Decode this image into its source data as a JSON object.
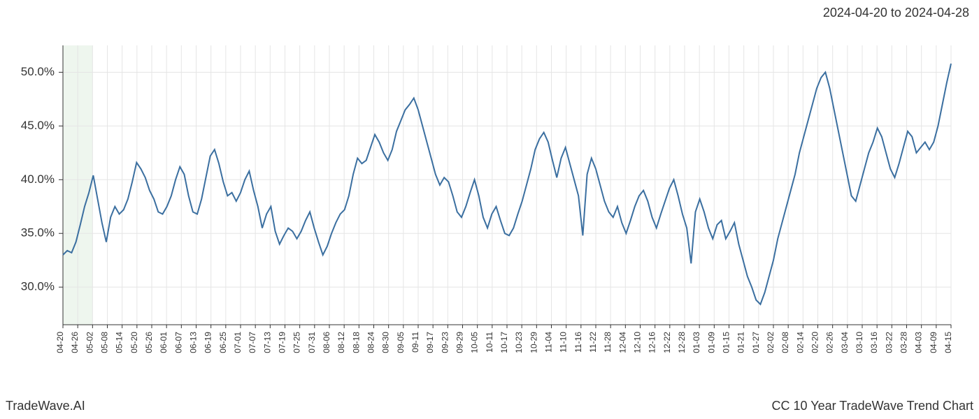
{
  "header": {
    "date_range": "2024-04-20 to 2024-04-28"
  },
  "footer": {
    "brand": "TradeWave.AI",
    "chart_title": "CC 10 Year TradeWave Trend Chart"
  },
  "chart": {
    "type": "line",
    "line_color": "#3b6fa0",
    "line_width": 2,
    "background_color": "#ffffff",
    "grid_color": "#e5e5e5",
    "axis_color": "#333333",
    "highlight_band": {
      "color": "#d4e8d4",
      "x_start_index": 0,
      "x_end_index": 2
    },
    "y_axis": {
      "min": 26.5,
      "max": 52.5,
      "ticks": [
        30.0,
        35.0,
        40.0,
        45.0,
        50.0
      ],
      "tick_labels": [
        "30.0%",
        "35.0%",
        "40.0%",
        "45.0%",
        "50.0%"
      ],
      "label_fontsize": 17
    },
    "x_axis": {
      "labels": [
        "04-20",
        "04-26",
        "05-02",
        "05-08",
        "05-14",
        "05-20",
        "05-26",
        "06-01",
        "06-07",
        "06-13",
        "06-19",
        "06-25",
        "07-01",
        "07-07",
        "07-13",
        "07-19",
        "07-25",
        "07-31",
        "08-06",
        "08-12",
        "08-18",
        "08-24",
        "08-30",
        "09-05",
        "09-11",
        "09-17",
        "09-23",
        "09-29",
        "10-05",
        "10-11",
        "10-17",
        "10-23",
        "10-29",
        "11-04",
        "11-10",
        "11-16",
        "11-22",
        "11-28",
        "12-04",
        "12-10",
        "12-16",
        "12-22",
        "12-28",
        "01-03",
        "01-09",
        "01-15",
        "01-21",
        "01-27",
        "02-02",
        "02-08",
        "02-14",
        "02-20",
        "02-26",
        "03-04",
        "03-10",
        "03-16",
        "03-22",
        "03-28",
        "04-03",
        "04-09",
        "04-15"
      ],
      "label_fontsize": 12,
      "rotation": -90
    },
    "series": {
      "values": [
        33.0,
        33.4,
        33.2,
        34.2,
        35.8,
        37.5,
        38.8,
        40.4,
        38.2,
        36.0,
        34.2,
        36.5,
        37.5,
        36.8,
        37.2,
        38.2,
        39.8,
        41.6,
        41.0,
        40.2,
        39.0,
        38.2,
        37.0,
        36.8,
        37.5,
        38.5,
        40.0,
        41.2,
        40.5,
        38.5,
        37.0,
        36.8,
        38.2,
        40.2,
        42.2,
        42.8,
        41.5,
        39.8,
        38.5,
        38.8,
        38.0,
        38.8,
        40.0,
        40.8,
        39.0,
        37.5,
        35.5,
        36.8,
        37.5,
        35.2,
        34.0,
        34.8,
        35.5,
        35.2,
        34.5,
        35.2,
        36.2,
        37.0,
        35.5,
        34.2,
        33.0,
        33.8,
        35.0,
        36.0,
        36.8,
        37.2,
        38.5,
        40.5,
        42.0,
        41.5,
        41.8,
        43.0,
        44.2,
        43.5,
        42.5,
        41.8,
        42.8,
        44.5,
        45.5,
        46.5,
        47.0,
        47.6,
        46.5,
        45.0,
        43.5,
        42.0,
        40.5,
        39.5,
        40.2,
        39.8,
        38.5,
        37.0,
        36.5,
        37.5,
        38.8,
        40.0,
        38.5,
        36.5,
        35.5,
        36.8,
        37.5,
        36.2,
        35.0,
        34.8,
        35.5,
        36.8,
        38.0,
        39.5,
        41.0,
        42.8,
        43.8,
        44.4,
        43.5,
        41.8,
        40.2,
        42.0,
        43.0,
        41.5,
        40.0,
        38.5,
        34.8,
        40.5,
        42.0,
        41.0,
        39.5,
        38.0,
        37.0,
        36.5,
        37.5,
        36.0,
        35.0,
        36.2,
        37.5,
        38.5,
        39.0,
        38.0,
        36.5,
        35.5,
        36.8,
        38.0,
        39.2,
        40.0,
        38.5,
        36.8,
        35.5,
        32.2,
        37.0,
        38.2,
        37.0,
        35.5,
        34.5,
        35.8,
        36.2,
        34.5,
        35.2,
        36.0,
        34.0,
        32.5,
        31.0,
        30.0,
        28.8,
        28.4,
        29.5,
        31.0,
        32.5,
        34.5,
        36.0,
        37.5,
        39.0,
        40.5,
        42.5,
        44.0,
        45.5,
        47.0,
        48.5,
        49.5,
        50.0,
        48.5,
        46.5,
        44.5,
        42.5,
        40.5,
        38.5,
        38.0,
        39.5,
        41.0,
        42.5,
        43.5,
        44.8,
        44.0,
        42.5,
        41.0,
        40.2,
        41.5,
        43.0,
        44.5,
        44.0,
        42.5,
        43.0,
        43.5,
        42.8,
        43.5,
        45.0,
        47.0,
        49.0,
        50.8
      ]
    }
  }
}
